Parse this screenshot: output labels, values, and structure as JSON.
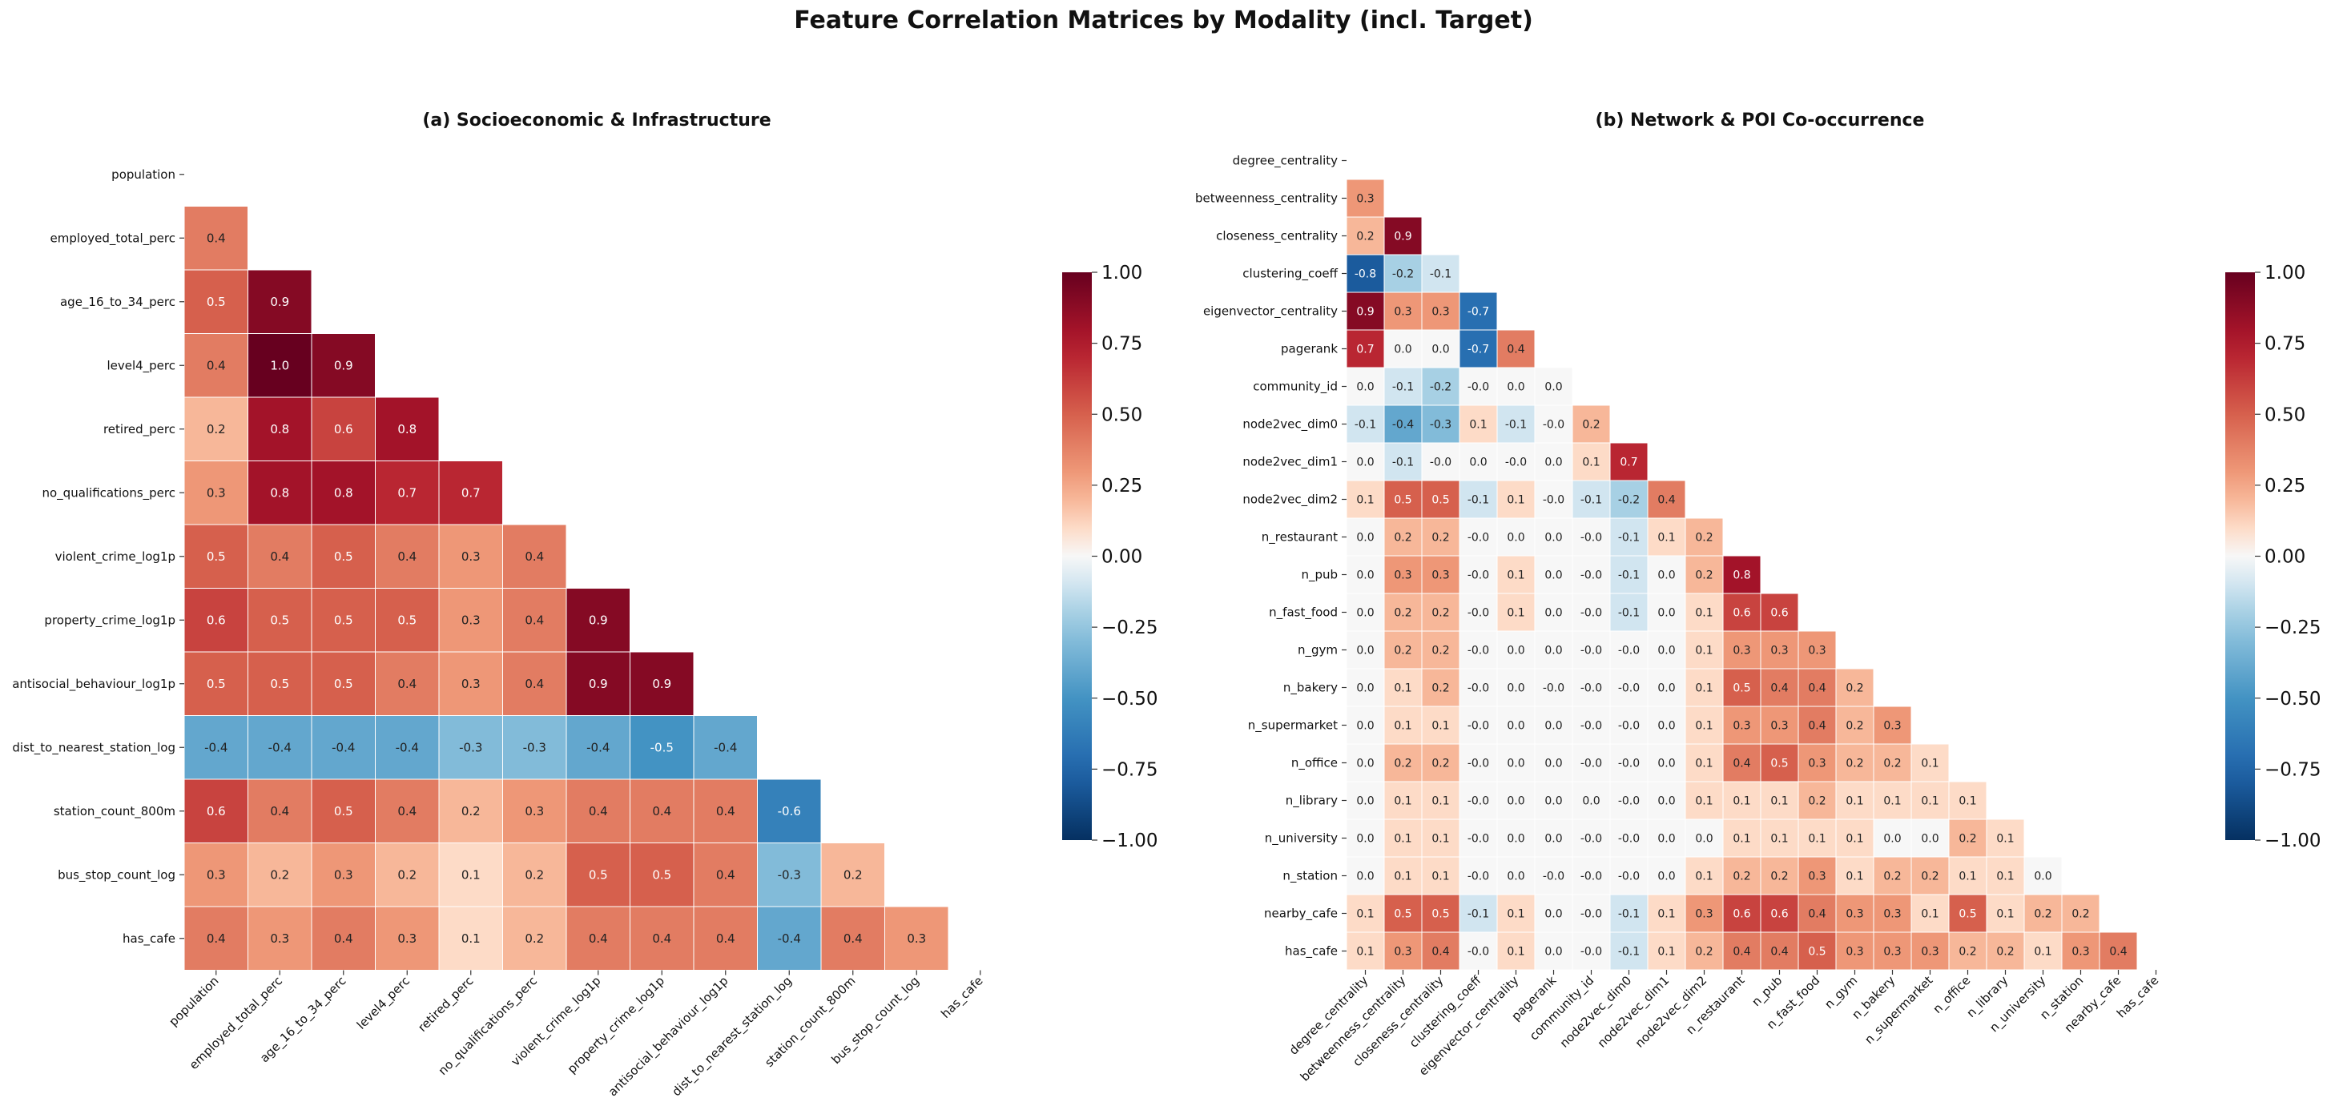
{
  "figure": {
    "suptitle": "Feature Correlation Matrices by Modality (incl. Target)"
  },
  "colors": {
    "colormap": "RdBu_r",
    "neg_end": "#053061",
    "pos_end": "#67001f",
    "mid": "#f7f7f7"
  },
  "chart_data": [
    {
      "type": "heatmap",
      "title": "(a) Socioeconomic & Infrastructure",
      "labels": [
        "population",
        "employed_total_perc",
        "age_16_to_34_perc",
        "level4_perc",
        "retired_perc",
        "no_qualifications_perc",
        "violent_crime_log1p",
        "property_crime_log1p",
        "antisocial_behaviour_log1p",
        "dist_to_nearest_station_log",
        "station_count_800m",
        "bus_stop_count_log",
        "has_cafe"
      ],
      "lower_triangle": [
        [],
        [
          "0.4"
        ],
        [
          "0.5",
          "0.9"
        ],
        [
          "0.4",
          "1.0",
          "0.9"
        ],
        [
          "0.2",
          "0.8",
          "0.6",
          "0.8"
        ],
        [
          "0.3",
          "0.8",
          "0.8",
          "0.7",
          "0.7"
        ],
        [
          "0.5",
          "0.4",
          "0.5",
          "0.4",
          "0.3",
          "0.4"
        ],
        [
          "0.6",
          "0.5",
          "0.5",
          "0.5",
          "0.3",
          "0.4",
          "0.9"
        ],
        [
          "0.5",
          "0.5",
          "0.5",
          "0.4",
          "0.3",
          "0.4",
          "0.9",
          "0.9"
        ],
        [
          "-0.4",
          "-0.4",
          "-0.4",
          "-0.4",
          "-0.3",
          "-0.3",
          "-0.4",
          "-0.5",
          "-0.4"
        ],
        [
          "0.6",
          "0.4",
          "0.5",
          "0.4",
          "0.2",
          "0.3",
          "0.4",
          "0.4",
          "0.4",
          "-0.6"
        ],
        [
          "0.3",
          "0.2",
          "0.3",
          "0.2",
          "0.1",
          "0.2",
          "0.5",
          "0.5",
          "0.4",
          "-0.3",
          "0.2"
        ],
        [
          "0.4",
          "0.3",
          "0.4",
          "0.3",
          "0.1",
          "0.2",
          "0.4",
          "0.4",
          "0.4",
          "-0.4",
          "0.4",
          "0.3"
        ]
      ],
      "mask": "upper triangle incl. diagonal",
      "vmin": -1.0,
      "vmax": 1.0,
      "colorbar_ticks": [
        "1.00",
        "0.75",
        "0.50",
        "0.25",
        "0.00",
        "−0.25",
        "−0.50",
        "−0.75",
        "−1.00"
      ]
    },
    {
      "type": "heatmap",
      "title": "(b) Network & POI Co-occurrence",
      "labels": [
        "degree_centrality",
        "betweenness_centrality",
        "closeness_centrality",
        "clustering_coeff",
        "eigenvector_centrality",
        "pagerank",
        "community_id",
        "node2vec_dim0",
        "node2vec_dim1",
        "node2vec_dim2",
        "n_restaurant",
        "n_pub",
        "n_fast_food",
        "n_gym",
        "n_bakery",
        "n_supermarket",
        "n_office",
        "n_library",
        "n_university",
        "n_station",
        "nearby_cafe",
        "has_cafe"
      ],
      "lower_triangle": [
        [],
        [
          "0.3"
        ],
        [
          "0.2",
          "0.9"
        ],
        [
          "-0.8",
          "-0.2",
          "-0.1"
        ],
        [
          "0.9",
          "0.3",
          "0.3",
          "-0.7"
        ],
        [
          "0.7",
          "0.0",
          "0.0",
          "-0.7",
          "0.4"
        ],
        [
          "0.0",
          "-0.1",
          "-0.2",
          "-0.0",
          "0.0",
          "0.0"
        ],
        [
          "-0.1",
          "-0.4",
          "-0.3",
          "0.1",
          "-0.1",
          "-0.0",
          "0.2"
        ],
        [
          "0.0",
          "-0.1",
          "-0.0",
          "0.0",
          "-0.0",
          "0.0",
          "0.1",
          "0.7"
        ],
        [
          "0.1",
          "0.5",
          "0.5",
          "-0.1",
          "0.1",
          "-0.0",
          "-0.1",
          "-0.2",
          "0.4"
        ],
        [
          "0.0",
          "0.2",
          "0.2",
          "-0.0",
          "0.0",
          "0.0",
          "-0.0",
          "-0.1",
          "0.1",
          "0.2"
        ],
        [
          "0.0",
          "0.3",
          "0.3",
          "-0.0",
          "0.1",
          "0.0",
          "-0.0",
          "-0.1",
          "0.0",
          "0.2",
          "0.8"
        ],
        [
          "0.0",
          "0.2",
          "0.2",
          "-0.0",
          "0.1",
          "0.0",
          "-0.0",
          "-0.1",
          "0.0",
          "0.1",
          "0.6",
          "0.6"
        ],
        [
          "0.0",
          "0.2",
          "0.2",
          "-0.0",
          "0.0",
          "0.0",
          "-0.0",
          "-0.0",
          "0.0",
          "0.1",
          "0.3",
          "0.3",
          "0.3"
        ],
        [
          "0.0",
          "0.1",
          "0.2",
          "-0.0",
          "0.0",
          "-0.0",
          "-0.0",
          "-0.0",
          "0.0",
          "0.1",
          "0.5",
          "0.4",
          "0.4",
          "0.2"
        ],
        [
          "0.0",
          "0.1",
          "0.1",
          "-0.0",
          "0.0",
          "0.0",
          "-0.0",
          "-0.0",
          "0.0",
          "0.1",
          "0.3",
          "0.3",
          "0.4",
          "0.2",
          "0.3"
        ],
        [
          "0.0",
          "0.2",
          "0.2",
          "-0.0",
          "0.0",
          "0.0",
          "-0.0",
          "-0.0",
          "0.0",
          "0.1",
          "0.4",
          "0.5",
          "0.3",
          "0.2",
          "0.2",
          "0.1"
        ],
        [
          "0.0",
          "0.1",
          "0.1",
          "-0.0",
          "0.0",
          "0.0",
          "0.0",
          "-0.0",
          "0.0",
          "0.1",
          "0.1",
          "0.1",
          "0.2",
          "0.1",
          "0.1",
          "0.1",
          "0.1"
        ],
        [
          "0.0",
          "0.1",
          "0.1",
          "-0.0",
          "0.0",
          "0.0",
          "-0.0",
          "-0.0",
          "0.0",
          "0.0",
          "0.1",
          "0.1",
          "0.1",
          "0.1",
          "0.0",
          "0.0",
          "0.2",
          "0.1"
        ],
        [
          "0.0",
          "0.1",
          "0.1",
          "-0.0",
          "0.0",
          "-0.0",
          "-0.0",
          "-0.0",
          "0.0",
          "0.1",
          "0.2",
          "0.2",
          "0.3",
          "0.1",
          "0.2",
          "0.2",
          "0.1",
          "0.1",
          "0.0"
        ],
        [
          "0.1",
          "0.5",
          "0.5",
          "-0.1",
          "0.1",
          "0.0",
          "-0.0",
          "-0.1",
          "0.1",
          "0.3",
          "0.6",
          "0.6",
          "0.4",
          "0.3",
          "0.3",
          "0.1",
          "0.5",
          "0.1",
          "0.2",
          "0.2"
        ],
        [
          "0.1",
          "0.3",
          "0.4",
          "-0.0",
          "0.1",
          "0.0",
          "-0.0",
          "-0.1",
          "0.1",
          "0.2",
          "0.4",
          "0.4",
          "0.5",
          "0.3",
          "0.3",
          "0.3",
          "0.2",
          "0.2",
          "0.1",
          "0.3",
          "0.4"
        ]
      ],
      "mask": "upper triangle incl. diagonal",
      "vmin": -1.0,
      "vmax": 1.0,
      "colorbar_ticks": [
        "1.00",
        "0.75",
        "0.50",
        "0.25",
        "0.00",
        "−0.25",
        "−0.50",
        "−0.75",
        "−1.00"
      ]
    }
  ]
}
